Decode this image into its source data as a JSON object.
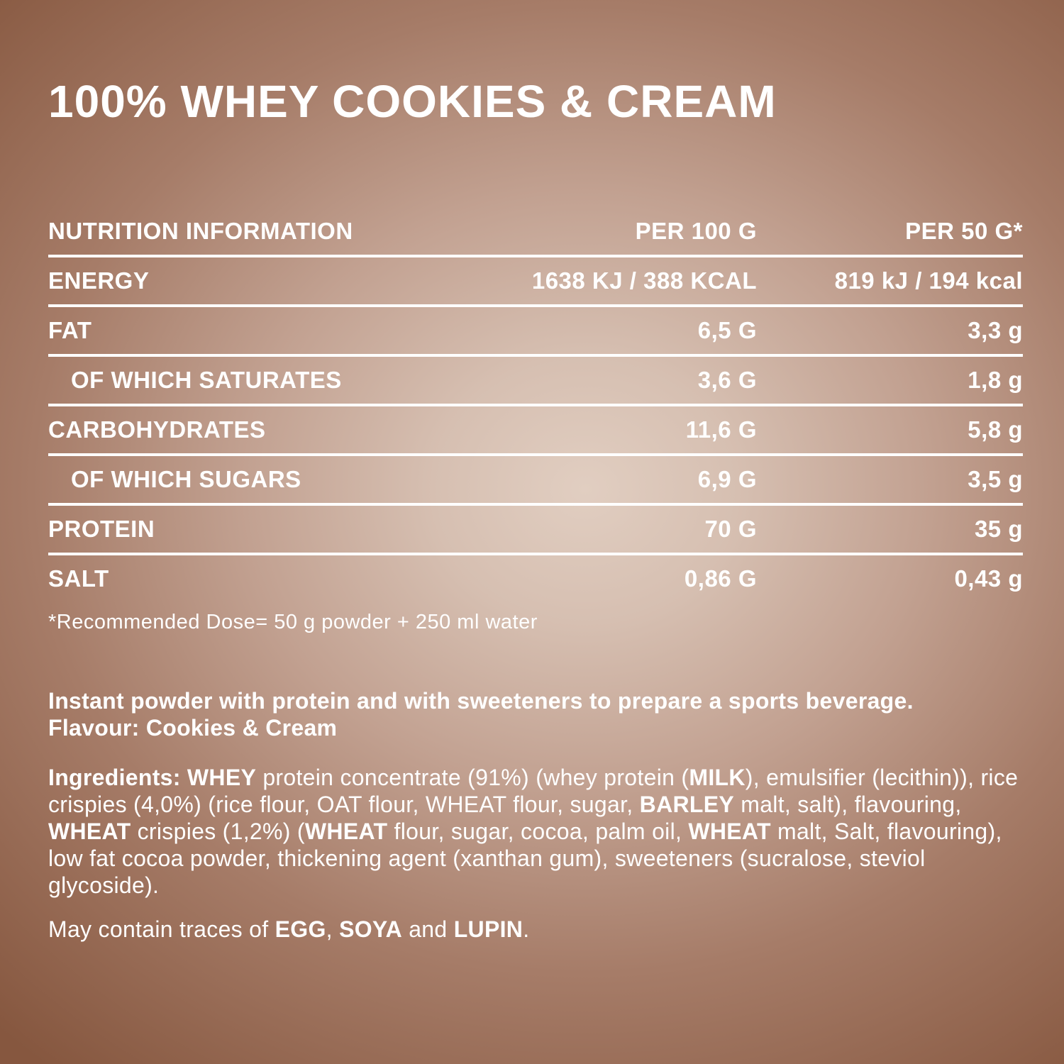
{
  "title": "100% WHEY COOKIES & CREAM",
  "table": {
    "header": {
      "col1": "NUTRITION INFORMATION",
      "col2": "PER 100 G",
      "col3": "PER 50 G*"
    },
    "rows": [
      {
        "label": "ENERGY",
        "per100": "1638 KJ / 388 KCAL",
        "per50": "819 kJ / 194 kcal",
        "indent": false
      },
      {
        "label": "FAT",
        "per100": "6,5 G",
        "per50": "3,3 g",
        "indent": false
      },
      {
        "label": "OF WHICH SATURATES",
        "per100": "3,6 G",
        "per50": "1,8 g",
        "indent": true
      },
      {
        "label": "CARBOHYDRATES",
        "per100": "11,6 G",
        "per50": "5,8 g",
        "indent": false
      },
      {
        "label": "OF WHICH SUGARS",
        "per100": "6,9 G",
        "per50": "3,5 g",
        "indent": true
      },
      {
        "label": "PROTEIN",
        "per100": "70 G",
        "per50": "35 g",
        "indent": false
      },
      {
        "label": "SALT",
        "per100": "0,86 G",
        "per50": "0,43 g",
        "indent": false
      }
    ],
    "footnote": "*Recommended Dose= 50 g powder + 250 ml water"
  },
  "description": {
    "line1": "Instant powder with protein and with sweeteners to prepare a sports beverage.",
    "line2": "Flavour: Cookies & Cream"
  },
  "ingredients": {
    "segments": [
      {
        "b": true,
        "t": "Ingredients: WHEY"
      },
      {
        "b": false,
        "t": " protein concentrate (91%) (whey protein ("
      },
      {
        "b": true,
        "t": "MILK"
      },
      {
        "b": false,
        "t": "), emulsifier (lecithin)), rice crispies (4,0%) (rice flour, OAT flour, WHEAT flour, sugar, "
      },
      {
        "b": true,
        "t": "BARLEY"
      },
      {
        "b": false,
        "t": " malt, salt), flavouring, "
      },
      {
        "b": true,
        "t": "WHEAT"
      },
      {
        "b": false,
        "t": " crispies (1,2%) ("
      },
      {
        "b": true,
        "t": "WHEAT"
      },
      {
        "b": false,
        "t": " flour, sugar, cocoa, palm oil, "
      },
      {
        "b": true,
        "t": "WHEAT"
      },
      {
        "b": false,
        "t": " malt, Salt, flavouring), low fat cocoa powder, thickening agent (xanthan gum), sweeteners (sucralose, steviol glycoside)."
      }
    ]
  },
  "may_contain": {
    "segments": [
      {
        "b": false,
        "t": "May contain traces of "
      },
      {
        "b": true,
        "t": "EGG"
      },
      {
        "b": false,
        "t": ", "
      },
      {
        "b": true,
        "t": "SOYA"
      },
      {
        "b": false,
        "t": " and "
      },
      {
        "b": true,
        "t": "LUPIN"
      },
      {
        "b": false,
        "t": "."
      }
    ]
  },
  "colors": {
    "text": "#ffffff",
    "background_center": "#e1cec1",
    "background_edge": "#86573f",
    "divider": "#ffffff"
  }
}
